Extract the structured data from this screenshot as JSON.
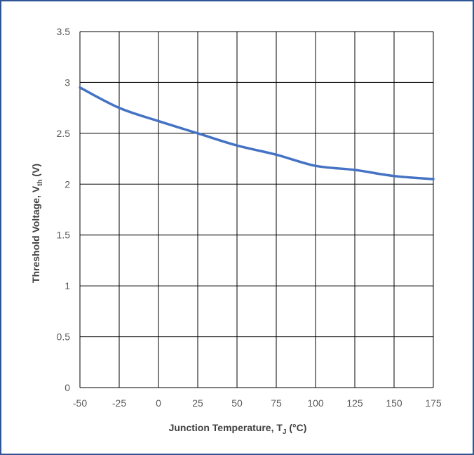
{
  "chart_data": {
    "type": "line",
    "title": "",
    "xlabel": "Junction Temperature, T",
    "xlabel_subscript": "J",
    "xlabel_suffix": " (°C)",
    "ylabel": "Threshold Voltage, V",
    "ylabel_subscript": "th",
    "ylabel_suffix": " (V)",
    "xlim": [
      -50,
      175
    ],
    "ylim": [
      0,
      3.5
    ],
    "x_ticks": [
      "-50",
      "-25",
      "0",
      "25",
      "50",
      "75",
      "100",
      "125",
      "150",
      "175"
    ],
    "y_ticks": [
      "0",
      "0.5",
      "1",
      "1.5",
      "2",
      "2.5",
      "3",
      "3.5"
    ],
    "grid": true,
    "series": [
      {
        "color": "#4472c4",
        "x": [
          -50,
          -25,
          0,
          25,
          50,
          75,
          100,
          125,
          150,
          175
        ],
        "y": [
          2.95,
          2.75,
          2.62,
          2.5,
          2.38,
          2.29,
          2.18,
          2.14,
          2.08,
          2.05
        ]
      }
    ]
  },
  "colors": {
    "frame_border": "#2f5597",
    "grid": "#000000",
    "line": "#4472c4"
  }
}
